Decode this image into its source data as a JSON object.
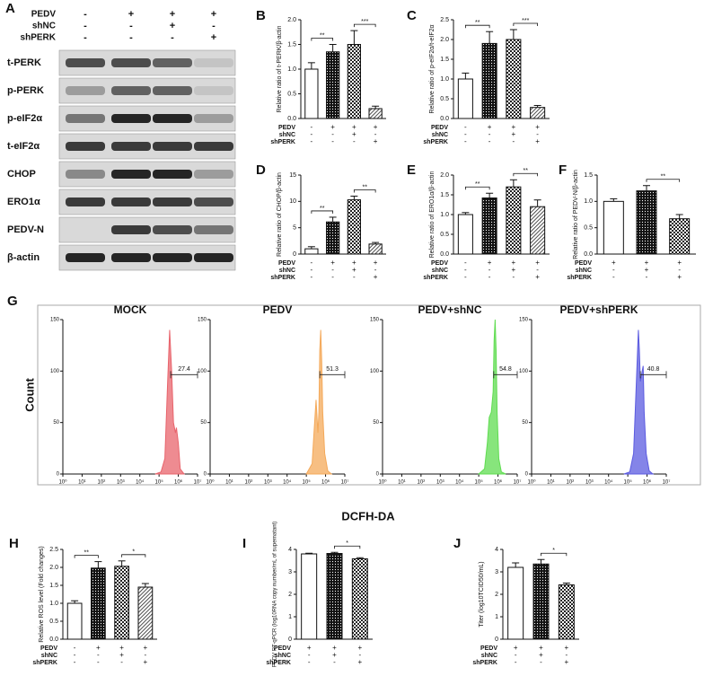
{
  "blot": {
    "panel": "A",
    "conditions": {
      "rows": [
        "PEDV",
        "shNC",
        "shPERK"
      ],
      "signs": [
        [
          "-",
          "+",
          "+",
          "+"
        ],
        [
          "-",
          "-",
          "+",
          "-"
        ],
        [
          "-",
          "-",
          "-",
          "+"
        ]
      ]
    },
    "rows": [
      "t-PERK",
      "p-PERK",
      "p-eIF2α",
      "t-eIF2α",
      "CHOP",
      "ERO1α",
      "PEDV-N",
      "β-actin"
    ]
  },
  "chart_data": [
    {
      "type": "bar",
      "panel": "B",
      "ylabel": "Relative ratio of t-PERK/β-actin",
      "conditions": {
        "rows": [
          "PEDV",
          "shNC",
          "shPERK"
        ],
        "signs": [
          [
            "-",
            "+",
            "+",
            "+"
          ],
          [
            "-",
            "-",
            "+",
            "-"
          ],
          [
            "-",
            "-",
            "-",
            "+"
          ]
        ]
      },
      "values": [
        1.0,
        1.35,
        1.5,
        0.2
      ],
      "errors": [
        0.13,
        0.15,
        0.28,
        0.05
      ],
      "fills": [
        "white",
        "dots",
        "checks",
        "hatch"
      ],
      "ylim": [
        0,
        2
      ],
      "yticks": [
        {
          "value": 0,
          "label": "0.0"
        },
        {
          "value": 0.5,
          "label": "0.5"
        },
        {
          "value": 1,
          "label": "1.0"
        },
        {
          "value": 1.5,
          "label": "1.5"
        },
        {
          "value": 2,
          "label": "2.0"
        }
      ],
      "annotations": [
        {
          "text": "**",
          "between": [
            0,
            1
          ]
        },
        {
          "text": "***",
          "between": [
            2,
            3
          ]
        }
      ]
    },
    {
      "type": "bar",
      "panel": "C",
      "ylabel": "Relative ratio of p-eIF2α/t-eIF2α",
      "conditions": {
        "rows": [
          "PEDV",
          "shNC",
          "shPERK"
        ],
        "signs": [
          [
            "-",
            "+",
            "+",
            "+"
          ],
          [
            "-",
            "-",
            "+",
            "-"
          ],
          [
            "-",
            "-",
            "-",
            "+"
          ]
        ]
      },
      "values": [
        1.0,
        1.9,
        2.0,
        0.28
      ],
      "errors": [
        0.15,
        0.3,
        0.25,
        0.05
      ],
      "fills": [
        "white",
        "dots",
        "checks",
        "hatch"
      ],
      "ylim": [
        0,
        2.5
      ],
      "yticks": [
        {
          "value": 0,
          "label": "0.0"
        },
        {
          "value": 0.5,
          "label": "0.5"
        },
        {
          "value": 1,
          "label": "1.0"
        },
        {
          "value": 1.5,
          "label": "1.5"
        },
        {
          "value": 2,
          "label": "2.0"
        },
        {
          "value": 2.5,
          "label": "2.5"
        }
      ],
      "annotations": [
        {
          "text": "**",
          "between": [
            0,
            1
          ]
        },
        {
          "text": "***",
          "between": [
            2,
            3
          ]
        }
      ]
    },
    {
      "type": "bar",
      "panel": "D",
      "ylabel": "Relative ratio of CHOP/β-actin",
      "conditions": {
        "rows": [
          "PEDV",
          "shNC",
          "shPERK"
        ],
        "signs": [
          [
            "-",
            "+",
            "+",
            "+"
          ],
          [
            "-",
            "-",
            "+",
            "-"
          ],
          [
            "-",
            "-",
            "-",
            "+"
          ]
        ]
      },
      "values": [
        1.0,
        6.1,
        10.3,
        1.9
      ],
      "errors": [
        0.4,
        0.9,
        0.7,
        0.3
      ],
      "fills": [
        "white",
        "dots",
        "checks",
        "hatch"
      ],
      "ylim": [
        0,
        15
      ],
      "yticks": [
        0,
        5,
        10,
        15
      ],
      "annotations": [
        {
          "text": "**",
          "between": [
            0,
            1
          ]
        },
        {
          "text": "**",
          "between": [
            2,
            3
          ]
        }
      ]
    },
    {
      "type": "bar",
      "panel": "E",
      "ylabel": "Relative ratio of ERO1α/β-actin",
      "conditions": {
        "rows": [
          "PEDV",
          "shNC",
          "shPERK"
        ],
        "signs": [
          [
            "-",
            "+",
            "+",
            "+"
          ],
          [
            "-",
            "-",
            "+",
            "-"
          ],
          [
            "-",
            "-",
            "-",
            "+"
          ]
        ]
      },
      "values": [
        1.0,
        1.42,
        1.7,
        1.2
      ],
      "errors": [
        0.05,
        0.12,
        0.18,
        0.17
      ],
      "fills": [
        "white",
        "dots",
        "checks",
        "hatch"
      ],
      "ylim": [
        0,
        2
      ],
      "yticks": [
        {
          "value": 0,
          "label": "0.0"
        },
        {
          "value": 0.5,
          "label": "0.5"
        },
        {
          "value": 1,
          "label": "1.0"
        },
        {
          "value": 1.5,
          "label": "1.5"
        },
        {
          "value": 2,
          "label": "2.0"
        }
      ],
      "annotations": [
        {
          "text": "**",
          "between": [
            0,
            1
          ]
        },
        {
          "text": "**",
          "between": [
            2,
            3
          ]
        }
      ]
    },
    {
      "type": "bar",
      "panel": "F",
      "ylabel": "Relative ratio of PEDV-N/β-actin",
      "conditions": {
        "rows": [
          "PEDV",
          "shNC",
          "shPERK"
        ],
        "signs": [
          [
            "+",
            "+",
            "+"
          ],
          [
            "-",
            "+",
            "-"
          ],
          [
            "-",
            "-",
            "+"
          ]
        ]
      },
      "values": [
        1.0,
        1.2,
        0.67
      ],
      "errors": [
        0.05,
        0.1,
        0.08
      ],
      "fills": [
        "white",
        "dots",
        "checks"
      ],
      "ylim": [
        0,
        1.5
      ],
      "yticks": [
        {
          "value": 0,
          "label": "0.0"
        },
        {
          "value": 0.5,
          "label": "0.5"
        },
        {
          "value": 1,
          "label": "1.0"
        },
        {
          "value": 1.5,
          "label": "1.5"
        }
      ],
      "annotations": [
        {
          "text": "**",
          "between": [
            1,
            2
          ]
        }
      ]
    },
    {
      "type": "flow",
      "panel": "G",
      "xlabel": "DCFH-DA",
      "ylabel": "Count",
      "xscale": "log",
      "xlim": [
        1,
        10000000
      ],
      "xticks": [
        {
          "value": 1,
          "label": "10⁰"
        },
        {
          "value": 10,
          "label": "10¹"
        },
        {
          "value": 100,
          "label": "10²"
        },
        {
          "value": 1000,
          "label": "10³"
        },
        {
          "value": 10000,
          "label": "10⁴"
        },
        {
          "value": 100000,
          "label": "10⁵"
        },
        {
          "value": 1000000,
          "label": "10⁶"
        },
        {
          "value": 10000000,
          "label": "10⁷"
        }
      ],
      "ylim": [
        0,
        150
      ],
      "yticks": [
        0,
        50,
        100,
        150
      ],
      "panels": [
        {
          "title": "MOCK",
          "color": "#e8646c",
          "x": [
            63000,
            126000,
            200000,
            280000,
            355000,
            450000,
            560000,
            710000,
            800000,
            1000000,
            1260000,
            2000000
          ],
          "values": [
            0,
            2,
            15,
            90,
            140,
            100,
            50,
            40,
            45,
            30,
            5,
            0
          ],
          "gate_range": [
            400000,
            10000000
          ],
          "gate_value": 27.4
        },
        {
          "title": "PEDV",
          "color": "#f4a95a",
          "x": [
            100000,
            200000,
            250000,
            320000,
            400000,
            450000,
            500000,
            560000,
            630000,
            710000,
            900000,
            1300000,
            2000000
          ],
          "values": [
            0,
            10,
            40,
            72,
            40,
            60,
            120,
            140,
            110,
            60,
            20,
            3,
            0
          ],
          "gate_range": [
            500000,
            10000000
          ],
          "gate_value": 51.3
        },
        {
          "title": "PEDV+shNC",
          "color": "#5fdc50",
          "x": [
            100000,
            200000,
            280000,
            350000,
            450000,
            560000,
            630000,
            710000,
            800000,
            900000,
            1100000,
            1500000,
            2500000
          ],
          "values": [
            0,
            5,
            30,
            55,
            60,
            80,
            130,
            150,
            120,
            60,
            15,
            2,
            0
          ],
          "gate_range": [
            600000,
            10000000
          ],
          "gate_value": 54.8
        },
        {
          "title": "PEDV+shPERK",
          "color": "#5b5be0",
          "x": [
            63000,
            126000,
            200000,
            280000,
            355000,
            400000,
            450000,
            560000,
            630000,
            710000,
            900000,
            1300000,
            2000000
          ],
          "values": [
            0,
            2,
            20,
            90,
            140,
            120,
            90,
            100,
            105,
            60,
            20,
            3,
            0
          ],
          "gate_range": [
            450000,
            10000000
          ],
          "gate_value": 40.8
        }
      ]
    },
    {
      "type": "bar",
      "panel": "H",
      "ylabel": "Relative ROS level (Fold changes)",
      "conditions": {
        "rows": [
          "PEDV",
          "shNC",
          "shPERK"
        ],
        "signs": [
          [
            "-",
            "+",
            "+",
            "+"
          ],
          [
            "-",
            "-",
            "+",
            "-"
          ],
          [
            "-",
            "-",
            "-",
            "+"
          ]
        ]
      },
      "values": [
        1.0,
        1.98,
        2.03,
        1.45
      ],
      "errors": [
        0.07,
        0.18,
        0.15,
        0.1
      ],
      "fills": [
        "white",
        "dots",
        "checks",
        "hatch"
      ],
      "ylim": [
        0,
        2.5
      ],
      "yticks": [
        {
          "value": 0,
          "label": "0.0"
        },
        {
          "value": 0.5,
          "label": "0.5"
        },
        {
          "value": 1,
          "label": "1.0"
        },
        {
          "value": 1.5,
          "label": "1.5"
        },
        {
          "value": 2,
          "label": "2.0"
        },
        {
          "value": 2.5,
          "label": "2.5"
        }
      ],
      "annotations": [
        {
          "text": "**",
          "between": [
            0,
            1
          ]
        },
        {
          "text": "*",
          "between": [
            2,
            3
          ]
        }
      ]
    },
    {
      "type": "bar",
      "panel": "I",
      "ylabel": "PEDV RT-qPCR (log10RNA copy number/mL of supernatant)",
      "conditions": {
        "rows": [
          "PEDV",
          "shNC",
          "shPERK"
        ],
        "signs": [
          [
            "+",
            "+",
            "+"
          ],
          [
            "-",
            "+",
            "-"
          ],
          [
            "-",
            "-",
            "+"
          ]
        ]
      },
      "values": [
        3.8,
        3.82,
        3.58
      ],
      "errors": [
        0.03,
        0.05,
        0.05
      ],
      "fills": [
        "white",
        "dots",
        "checks"
      ],
      "ylim": [
        0,
        4
      ],
      "yticks": [
        0,
        1,
        2,
        3,
        4
      ],
      "annotations": [
        {
          "text": "*",
          "between": [
            1,
            2
          ]
        }
      ]
    },
    {
      "type": "bar",
      "panel": "J",
      "ylabel": "Titer (log10TCID50/mL)",
      "conditions": {
        "rows": [
          "PEDV",
          "shNC",
          "shPERK"
        ],
        "signs": [
          [
            "+",
            "+",
            "+"
          ],
          [
            "-",
            "+",
            "-"
          ],
          [
            "-",
            "-",
            "+"
          ]
        ]
      },
      "values": [
        3.2,
        3.35,
        2.42
      ],
      "errors": [
        0.2,
        0.2,
        0.08
      ],
      "fills": [
        "white",
        "dots",
        "checks"
      ],
      "ylim": [
        0,
        4
      ],
      "yticks": [
        0,
        1,
        2,
        3,
        4
      ],
      "annotations": [
        {
          "text": "*",
          "between": [
            1,
            2
          ]
        }
      ]
    }
  ]
}
